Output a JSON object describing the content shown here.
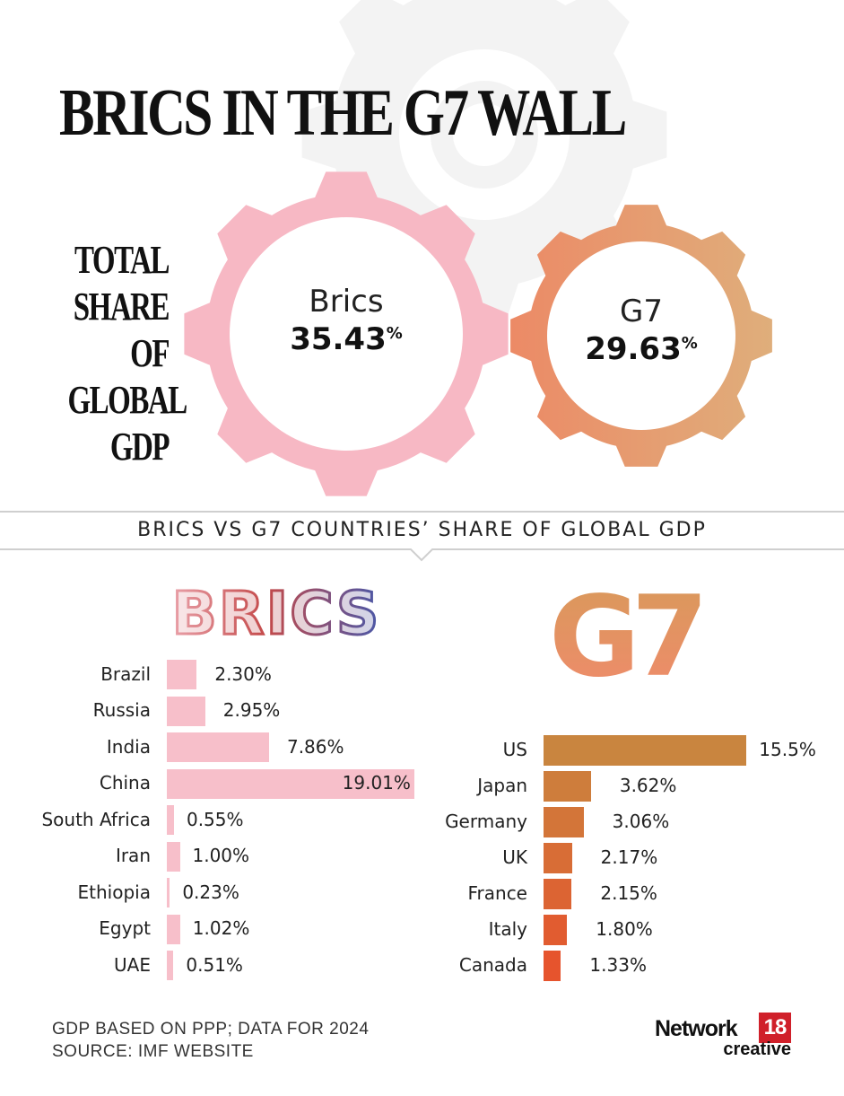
{
  "title": "BRICS IN THE G7 WALL",
  "side_label_lines": [
    "TOTAL",
    "SHARE OF",
    "GLOBAL",
    "GDP"
  ],
  "totals": {
    "brics": {
      "name": "Brics",
      "value": "35.43",
      "unit": "%"
    },
    "g7": {
      "name": "G7",
      "value": "29.63",
      "unit": "%"
    }
  },
  "section_title": "BRICS VS G7 COUNTRIES’ SHARE OF GLOBAL GDP",
  "logos": {
    "brics": "BRICS",
    "g7": "G7"
  },
  "colors": {
    "brics_gear": "#f7b8c4",
    "brics_bar": "#f7bfca",
    "g7_gear_start": "#ec8a66",
    "g7_gear_end": "#dfae7b",
    "g7_bar_top": "#c9853f",
    "g7_bar_bottom": "#e6542d",
    "bg_gear": "#f3f3f3"
  },
  "chart_data": [
    {
      "type": "bar",
      "orientation": "horizontal",
      "group": "BRICS",
      "categories": [
        "Brazil",
        "Russia",
        "India",
        "China",
        "South Africa",
        "Iran",
        "Ethiopia",
        "Egypt",
        "UAE"
      ],
      "values": [
        2.3,
        2.95,
        7.86,
        19.01,
        0.55,
        1.0,
        0.23,
        1.02,
        0.51
      ],
      "labels": [
        "2.30%",
        "2.95%",
        "7.86%",
        "19.01%",
        "0.55%",
        "1.00%",
        "0.23%",
        "1.02%",
        "0.51%"
      ]
    },
    {
      "type": "bar",
      "orientation": "horizontal",
      "group": "G7",
      "categories": [
        "US",
        "Japan",
        "Germany",
        "UK",
        "France",
        "Italy",
        "Canada"
      ],
      "values": [
        15.5,
        3.62,
        3.06,
        2.17,
        2.15,
        1.8,
        1.33
      ],
      "labels": [
        "15.5%",
        "3.62%",
        "3.06%",
        "2.17%",
        "2.15%",
        "1.80%",
        "1.33%"
      ]
    }
  ],
  "footnote": {
    "line1": "GDP BASED ON PPP; DATA FOR 2024",
    "line2": "SOURCE: IMF WEBSITE"
  },
  "brand": {
    "name": "Network",
    "number": "18",
    "sub": "creative"
  }
}
